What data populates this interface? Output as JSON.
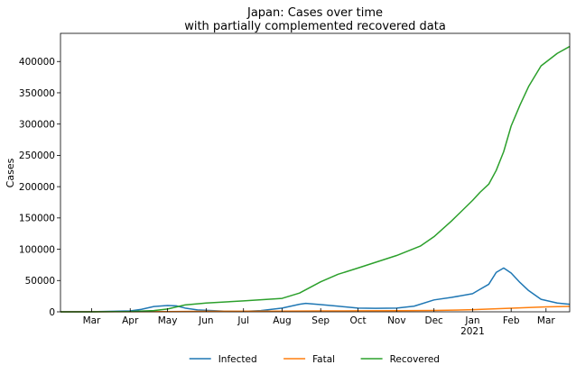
{
  "chart_data": {
    "type": "line",
    "title_line1": "Japan: Cases over time",
    "title_line2": "with partially complemented recovered data",
    "xlabel": "",
    "ylabel": "Cases",
    "x_range": [
      "2020-02-05",
      "2021-03-20"
    ],
    "ylim": [
      0,
      445000
    ],
    "x_ticks": [
      {
        "date": "2020-03-01",
        "label": "Mar"
      },
      {
        "date": "2020-04-01",
        "label": "Apr"
      },
      {
        "date": "2020-05-01",
        "label": "May"
      },
      {
        "date": "2020-06-01",
        "label": "Jun"
      },
      {
        "date": "2020-07-01",
        "label": "Jul"
      },
      {
        "date": "2020-08-01",
        "label": "Aug"
      },
      {
        "date": "2020-09-01",
        "label": "Sep"
      },
      {
        "date": "2020-10-01",
        "label": "Oct"
      },
      {
        "date": "2020-11-01",
        "label": "Nov"
      },
      {
        "date": "2020-12-01",
        "label": "Dec"
      },
      {
        "date": "2021-01-01",
        "label": "Jan",
        "sublabel": "2021"
      },
      {
        "date": "2021-02-01",
        "label": "Feb"
      },
      {
        "date": "2021-03-01",
        "label": "Mar"
      }
    ],
    "y_ticks": [
      {
        "value": 0,
        "label": "0"
      },
      {
        "value": 50000,
        "label": "50000"
      },
      {
        "value": 100000,
        "label": "100000"
      },
      {
        "value": 150000,
        "label": "150000"
      },
      {
        "value": 200000,
        "label": "200000"
      },
      {
        "value": 250000,
        "label": "250000"
      },
      {
        "value": 300000,
        "label": "300000"
      },
      {
        "value": 350000,
        "label": "350000"
      },
      {
        "value": 400000,
        "label": "400000"
      }
    ],
    "grid": false,
    "legend_position": "bottom-center",
    "series": [
      {
        "name": "Infected",
        "color": "#1f77b4",
        "points": [
          [
            "2020-02-05",
            0
          ],
          [
            "2020-03-01",
            100
          ],
          [
            "2020-04-01",
            1500
          ],
          [
            "2020-04-10",
            4000
          ],
          [
            "2020-04-20",
            8500
          ],
          [
            "2020-05-01",
            10000
          ],
          [
            "2020-05-08",
            9500
          ],
          [
            "2020-05-15",
            6000
          ],
          [
            "2020-05-25",
            3000
          ],
          [
            "2020-06-15",
            1000
          ],
          [
            "2020-07-01",
            700
          ],
          [
            "2020-07-15",
            2000
          ],
          [
            "2020-08-01",
            6000
          ],
          [
            "2020-08-15",
            12000
          ],
          [
            "2020-08-20",
            13500
          ],
          [
            "2020-09-01",
            11500
          ],
          [
            "2020-09-15",
            9000
          ],
          [
            "2020-10-01",
            6000
          ],
          [
            "2020-10-15",
            5500
          ],
          [
            "2020-11-01",
            6000
          ],
          [
            "2020-11-15",
            9000
          ],
          [
            "2020-12-01",
            19000
          ],
          [
            "2020-12-15",
            23000
          ],
          [
            "2021-01-01",
            29000
          ],
          [
            "2021-01-07",
            36000
          ],
          [
            "2021-01-14",
            44000
          ],
          [
            "2021-01-20",
            63000
          ],
          [
            "2021-01-26",
            70000
          ],
          [
            "2021-02-01",
            62000
          ],
          [
            "2021-02-08",
            47000
          ],
          [
            "2021-02-15",
            34000
          ],
          [
            "2021-02-25",
            20000
          ],
          [
            "2021-03-10",
            14000
          ],
          [
            "2021-03-20",
            12000
          ]
        ]
      },
      {
        "name": "Fatal",
        "color": "#ff7f0e",
        "points": [
          [
            "2020-02-05",
            0
          ],
          [
            "2020-05-01",
            400
          ],
          [
            "2020-06-01",
            900
          ],
          [
            "2020-08-01",
            1000
          ],
          [
            "2020-09-01",
            1400
          ],
          [
            "2020-10-01",
            1600
          ],
          [
            "2020-11-01",
            1800
          ],
          [
            "2020-12-01",
            2100
          ],
          [
            "2021-01-01",
            3400
          ],
          [
            "2021-02-01",
            5800
          ],
          [
            "2021-03-01",
            7900
          ],
          [
            "2021-03-20",
            8700
          ]
        ]
      },
      {
        "name": "Recovered",
        "color": "#2ca02c",
        "points": [
          [
            "2020-02-05",
            0
          ],
          [
            "2020-03-01",
            50
          ],
          [
            "2020-04-01",
            500
          ],
          [
            "2020-04-20",
            2000
          ],
          [
            "2020-05-01",
            4500
          ],
          [
            "2020-05-15",
            11000
          ],
          [
            "2020-06-01",
            14000
          ],
          [
            "2020-07-01",
            17500
          ],
          [
            "2020-08-01",
            21500
          ],
          [
            "2020-08-15",
            30000
          ],
          [
            "2020-09-01",
            48000
          ],
          [
            "2020-09-15",
            60000
          ],
          [
            "2020-10-01",
            70000
          ],
          [
            "2020-11-01",
            90000
          ],
          [
            "2020-11-20",
            105000
          ],
          [
            "2020-12-01",
            120000
          ],
          [
            "2020-12-15",
            145000
          ],
          [
            "2021-01-01",
            178000
          ],
          [
            "2021-01-07",
            191000
          ],
          [
            "2021-01-14",
            204000
          ],
          [
            "2021-01-20",
            226000
          ],
          [
            "2021-01-26",
            256000
          ],
          [
            "2021-02-01",
            297000
          ],
          [
            "2021-02-08",
            330000
          ],
          [
            "2021-02-15",
            360000
          ],
          [
            "2021-02-25",
            393000
          ],
          [
            "2021-03-10",
            413000
          ],
          [
            "2021-03-20",
            424000
          ]
        ]
      }
    ]
  }
}
